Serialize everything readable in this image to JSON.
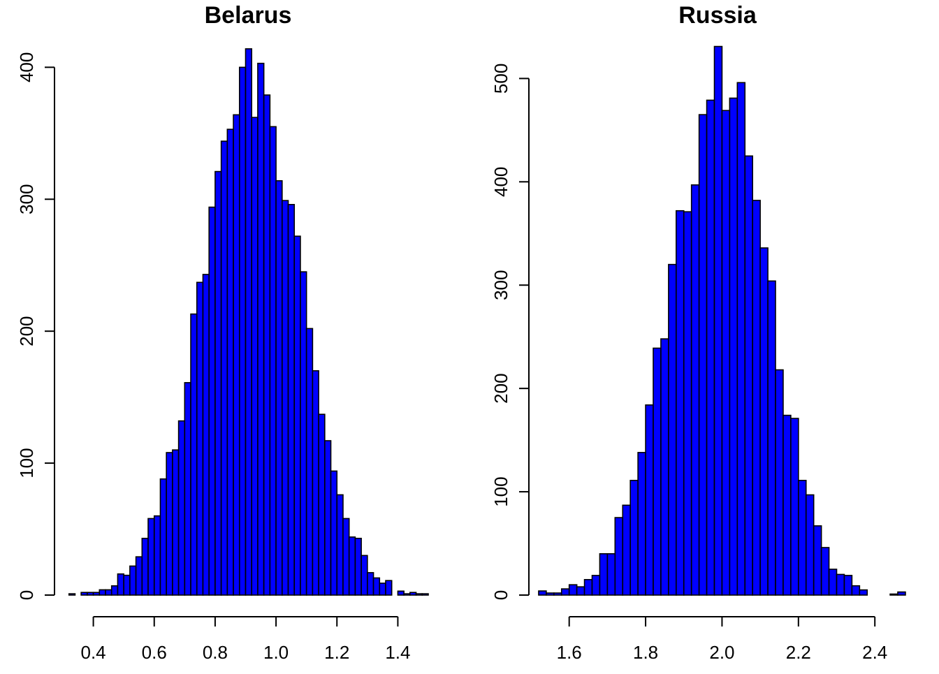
{
  "chart_data": [
    {
      "type": "bar",
      "title": "Belarus",
      "xlabel": "",
      "ylabel": "",
      "bin_width": 0.02,
      "bins_start": 0.32,
      "xlim": [
        0.3,
        1.5
      ],
      "ylim": [
        0,
        415
      ],
      "x_ticks": [
        0.4,
        0.6,
        0.8,
        1.0,
        1.2,
        1.4
      ],
      "x_tick_labels": [
        "0.4",
        "0.6",
        "0.8",
        "1.0",
        "1.2",
        "1.4"
      ],
      "y_ticks": [
        0,
        100,
        200,
        300,
        400
      ],
      "y_tick_labels": [
        "0",
        "100",
        "200",
        "300",
        "400"
      ],
      "values": [
        1,
        0,
        2,
        2,
        2,
        4,
        4,
        7,
        16,
        15,
        22,
        29,
        43,
        58,
        60,
        88,
        108,
        110,
        132,
        161,
        213,
        237,
        243,
        294,
        321,
        344,
        353,
        364,
        400,
        414,
        362,
        403,
        379,
        355,
        314,
        299,
        296,
        272,
        245,
        202,
        170,
        137,
        117,
        94,
        76,
        58,
        44,
        43,
        30,
        17,
        13,
        9,
        11,
        0,
        3,
        1,
        2,
        1,
        1
      ],
      "bar_color": "#0000ff",
      "grid": false
    },
    {
      "type": "bar",
      "title": "Russia",
      "xlabel": "",
      "ylabel": "",
      "bin_width": 0.02,
      "bins_start": 1.52,
      "xlim": [
        1.5,
        2.46
      ],
      "ylim": [
        0,
        530
      ],
      "x_ticks": [
        1.6,
        1.8,
        2.0,
        2.2,
        2.4
      ],
      "x_tick_labels": [
        "1.6",
        "1.8",
        "2.0",
        "2.2",
        "2.4"
      ],
      "y_ticks": [
        0,
        100,
        200,
        300,
        400,
        500
      ],
      "y_tick_labels": [
        "0",
        "100",
        "200",
        "300",
        "400",
        "500"
      ],
      "values": [
        4,
        2,
        2,
        6,
        10,
        8,
        15,
        19,
        40,
        40,
        75,
        87,
        111,
        138,
        184,
        239,
        248,
        320,
        372,
        371,
        397,
        465,
        479,
        531,
        469,
        481,
        496,
        425,
        382,
        336,
        304,
        218,
        174,
        171,
        111,
        97,
        67,
        46,
        25,
        20,
        19,
        9,
        5,
        0,
        0,
        0,
        1,
        3
      ],
      "bar_color": "#0000ff",
      "grid": false
    }
  ]
}
